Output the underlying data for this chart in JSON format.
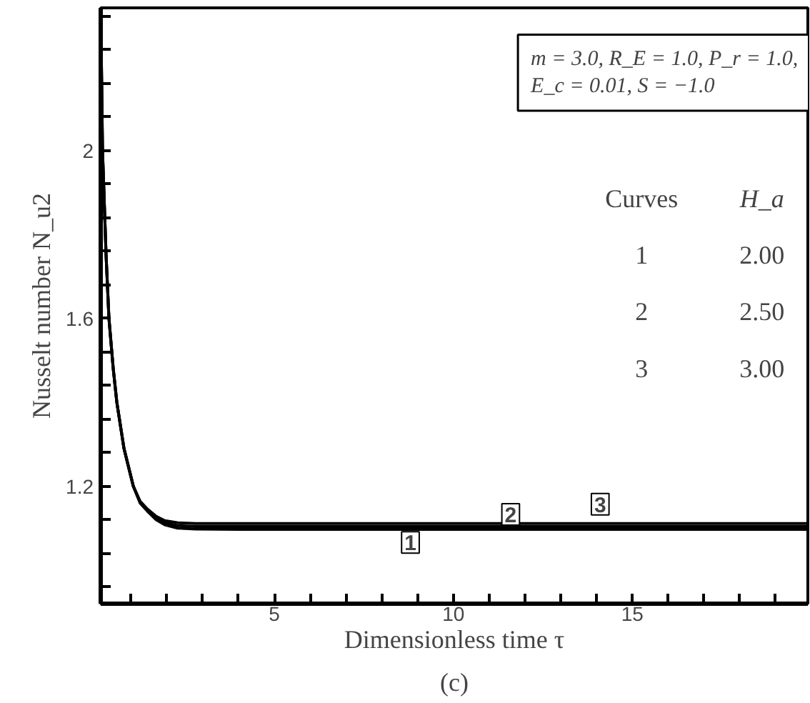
{
  "chart_data": {
    "type": "line",
    "xlabel": "Dimensionless time τ",
    "ylabel": "Nusselt number N_u2",
    "xlim": [
      0.15,
      19.9
    ],
    "xticks": [
      {
        "value": 1,
        "label": null
      },
      {
        "value": 2,
        "label": null
      },
      {
        "value": 3,
        "label": null
      },
      {
        "value": 4,
        "label": null
      },
      5,
      {
        "value": 6,
        "label": null
      },
      {
        "value": 7,
        "label": null
      },
      {
        "value": 8,
        "label": null
      },
      {
        "value": 9,
        "label": null
      },
      10,
      {
        "value": 11,
        "label": null
      },
      {
        "value": 12,
        "label": null
      },
      {
        "value": 13,
        "label": null
      },
      {
        "value": 14,
        "label": null
      },
      15,
      {
        "value": 16,
        "label": null
      },
      {
        "value": 17,
        "label": null
      },
      {
        "value": 18,
        "label": null
      },
      {
        "value": 19,
        "label": null
      }
    ],
    "ylim": [
      0.92,
      2.34
    ],
    "yticks": [
      {
        "value": 0.96,
        "label": null
      },
      {
        "value": 1.04,
        "label": null
      },
      {
        "value": 1.12,
        "label": null
      },
      1.2,
      {
        "value": 1.28,
        "label": null
      },
      {
        "value": 1.36,
        "label": null
      },
      {
        "value": 1.44,
        "label": null
      },
      {
        "value": 1.52,
        "label": null
      },
      1.6,
      {
        "value": 1.68,
        "label": null
      },
      {
        "value": 1.76,
        "label": null
      },
      {
        "value": 1.84,
        "label": null
      },
      {
        "value": 1.92,
        "label": null
      },
      2,
      {
        "value": 2.08,
        "label": null
      },
      {
        "value": 2.16,
        "label": null
      },
      {
        "value": 2.24,
        "label": null
      },
      {
        "value": 2.32,
        "label": null
      }
    ],
    "grid": false,
    "line_style": "solid",
    "series": [
      {
        "color": "#000000",
        "x": [
          0.15,
          0.2,
          0.3,
          0.38,
          0.5,
          0.6,
          0.8,
          1.06,
          1.25,
          1.46,
          1.7,
          1.94,
          2.3,
          2.8,
          4,
          8,
          12,
          16,
          19.9
        ],
        "values": [
          2.34,
          2.0,
          1.75,
          1.6,
          1.48,
          1.4,
          1.29,
          1.2,
          1.16,
          1.14,
          1.12,
          1.108,
          1.1,
          1.098,
          1.097,
          1.097,
          1.097,
          1.097,
          1.097
        ]
      },
      {
        "color": "#000000",
        "x": [
          0.15,
          0.2,
          0.3,
          0.38,
          0.5,
          0.6,
          0.8,
          1.06,
          1.25,
          1.46,
          1.7,
          1.94,
          2.3,
          2.8,
          4,
          8,
          12,
          16,
          19.9
        ],
        "values": [
          2.34,
          2.0,
          1.75,
          1.6,
          1.48,
          1.4,
          1.29,
          1.2,
          1.162,
          1.142,
          1.124,
          1.113,
          1.106,
          1.104,
          1.104,
          1.104,
          1.104,
          1.104,
          1.104
        ]
      },
      {
        "color": "#000000",
        "x": [
          0.15,
          0.2,
          0.3,
          0.38,
          0.5,
          0.6,
          0.8,
          1.06,
          1.25,
          1.46,
          1.7,
          1.94,
          2.3,
          2.8,
          4,
          8,
          12,
          16,
          19.9
        ],
        "values": [
          2.34,
          2.0,
          1.75,
          1.6,
          1.48,
          1.4,
          1.29,
          1.2,
          1.164,
          1.145,
          1.128,
          1.118,
          1.113,
          1.111,
          1.111,
          1.111,
          1.111,
          1.111,
          1.111
        ]
      }
    ],
    "annotations": [
      {
        "text": "1",
        "x": 8.8,
        "y": 1.066
      },
      {
        "text": "2",
        "x": 11.6,
        "y": 1.133
      },
      {
        "text": "3",
        "x": 14.1,
        "y": 1.157
      },
      "m = 3.0, R_E = 1.0, P_r = 1.0,\nE_c = 0.01, S = −1.0",
      "Curves",
      "H_a",
      "1",
      "2.00",
      "2",
      "2.50",
      "3",
      "3.00",
      "(c)"
    ]
  }
}
